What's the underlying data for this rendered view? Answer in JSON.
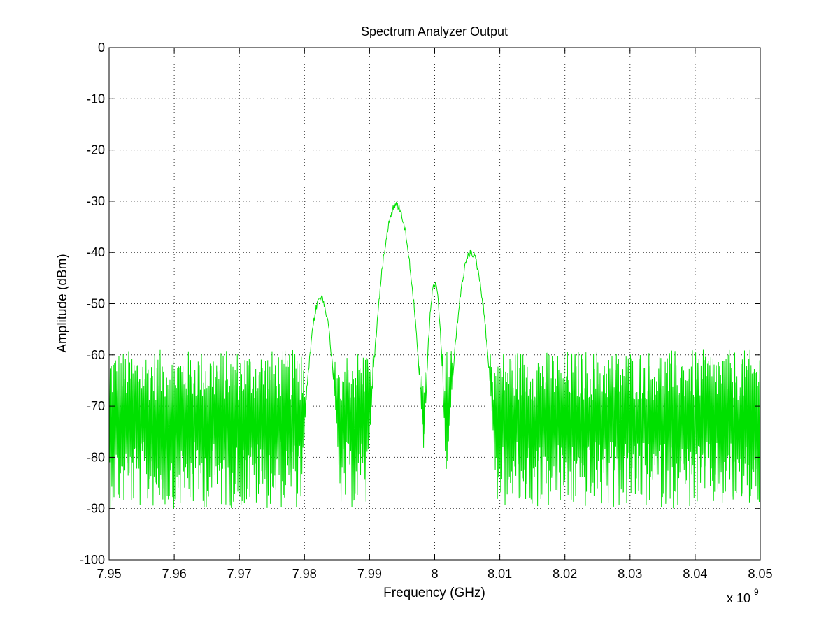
{
  "chart_data": {
    "type": "line",
    "title": "Spectrum Analyzer Output",
    "xlabel": "Frequency (GHz)",
    "ylabel": "Amplitude (dBm)",
    "x_exponent_label": "x 10",
    "x_exponent_power": "9",
    "xlim": [
      7.95,
      8.05
    ],
    "ylim": [
      -100,
      0
    ],
    "x_ticks": [
      7.95,
      7.96,
      7.97,
      7.98,
      7.99,
      8.0,
      8.01,
      8.02,
      8.03,
      8.04,
      8.05
    ],
    "x_tick_labels": [
      "7.95",
      "7.96",
      "7.97",
      "7.98",
      "7.99",
      "8",
      "8.01",
      "8.02",
      "8.03",
      "8.04",
      "8.05"
    ],
    "y_ticks": [
      0,
      -10,
      -20,
      -30,
      -40,
      -50,
      -60,
      -70,
      -80,
      -90,
      -100
    ],
    "y_tick_labels": [
      "0",
      "-10",
      "-20",
      "-30",
      "-40",
      "-50",
      "-60",
      "-70",
      "-80",
      "-90",
      "-100"
    ],
    "grid": true,
    "series": [
      {
        "color": "#00e000",
        "noise_floor": {
          "mean": -73,
          "min": -90,
          "max": -59
        },
        "peaks": [
          {
            "x": 7.9825,
            "y": -48,
            "width": 0.0012
          },
          {
            "x": 7.9941,
            "y": -30,
            "width": 0.0015
          },
          {
            "x": 8.0,
            "y": -45.5,
            "width": 0.0007
          },
          {
            "x": 8.0056,
            "y": -39.3,
            "width": 0.0014
          }
        ],
        "sample_count": 1200
      }
    ]
  }
}
